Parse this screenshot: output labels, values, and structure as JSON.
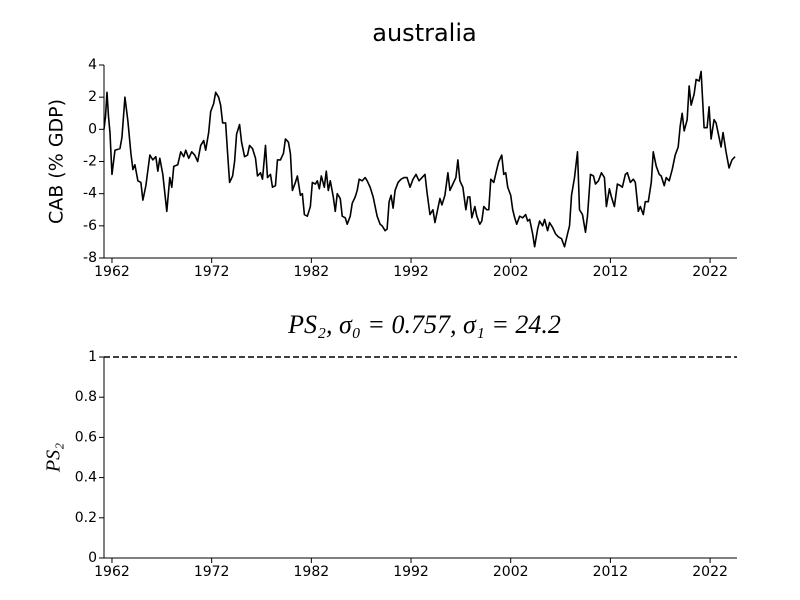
{
  "chart_data": [
    {
      "type": "line",
      "title": "australia",
      "ylabel": "CAB (% GDP)",
      "x": [
        1961.2,
        1961.35,
        1961.5,
        1961.65,
        1961.8,
        1962.0,
        1962.3,
        1962.8,
        1963.0,
        1963.3,
        1963.6,
        1963.9,
        1964.1,
        1964.3,
        1964.6,
        1964.9,
        1965.1,
        1965.4,
        1965.8,
        1966.1,
        1966.4,
        1966.6,
        1966.8,
        1967.1,
        1967.5,
        1967.8,
        1968.0,
        1968.2,
        1968.6,
        1968.9,
        1969.2,
        1969.4,
        1969.7,
        1970.0,
        1970.3,
        1970.6,
        1970.9,
        1971.2,
        1971.4,
        1971.7,
        1971.9,
        1972.2,
        1972.4,
        1972.7,
        1972.9,
        1973.1,
        1973.4,
        1973.6,
        1973.8,
        1974.1,
        1974.3,
        1974.5,
        1974.8,
        1975.0,
        1975.3,
        1975.6,
        1975.8,
        1976.1,
        1976.4,
        1976.6,
        1976.9,
        1977.1,
        1977.4,
        1977.6,
        1977.9,
        1978.1,
        1978.4,
        1978.6,
        1978.9,
        1979.2,
        1979.4,
        1979.7,
        1979.9,
        1980.1,
        1980.4,
        1980.6,
        1980.9,
        1981.1,
        1981.3,
        1981.6,
        1981.9,
        1982.1,
        1982.4,
        1982.6,
        1982.8,
        1983.0,
        1983.3,
        1983.5,
        1983.7,
        1983.9,
        1984.2,
        1984.4,
        1984.6,
        1984.9,
        1985.1,
        1985.4,
        1985.6,
        1985.9,
        1986.1,
        1986.4,
        1986.6,
        1986.8,
        1987.1,
        1987.4,
        1987.6,
        1987.9,
        1988.2,
        1988.4,
        1988.6,
        1988.9,
        1989.1,
        1989.4,
        1989.6,
        1989.8,
        1990.0,
        1990.2,
        1990.4,
        1990.7,
        1991.0,
        1991.3,
        1991.6,
        1991.9,
        1992.2,
        1992.5,
        1992.8,
        1993.1,
        1993.4,
        1993.6,
        1993.9,
        1994.2,
        1994.4,
        1994.7,
        1994.9,
        1995.1,
        1995.4,
        1995.7,
        1995.9,
        1996.2,
        1996.5,
        1996.7,
        1996.9,
        1997.2,
        1997.5,
        1997.7,
        1997.9,
        1998.1,
        1998.4,
        1998.6,
        1998.9,
        1999.1,
        1999.3,
        1999.6,
        1999.8,
        2000.0,
        2000.3,
        2000.6,
        2000.8,
        2001.1,
        2001.3,
        2001.5,
        2001.7,
        2002.0,
        2002.2,
        2002.4,
        2002.6,
        2002.9,
        2003.2,
        2003.5,
        2003.7,
        2003.9,
        2004.2,
        2004.4,
        2004.7,
        2004.9,
        2005.2,
        2005.4,
        2005.7,
        2005.9,
        2006.2,
        2006.5,
        2006.8,
        2007.1,
        2007.4,
        2007.7,
        2007.9,
        2008.1,
        2008.4,
        2008.7,
        2008.9,
        2009.2,
        2009.5,
        2009.7,
        2010.0,
        2010.3,
        2010.5,
        2010.8,
        2011.1,
        2011.4,
        2011.6,
        2011.9,
        2012.1,
        2012.4,
        2012.7,
        2013.0,
        2013.2,
        2013.5,
        2013.7,
        2014.0,
        2014.3,
        2014.5,
        2014.8,
        2015.0,
        2015.3,
        2015.5,
        2015.8,
        2016.1,
        2016.3,
        2016.6,
        2016.9,
        2017.1,
        2017.4,
        2017.6,
        2017.9,
        2018.2,
        2018.5,
        2018.8,
        2019.0,
        2019.2,
        2019.4,
        2019.7,
        2019.9,
        2020.1,
        2020.4,
        2020.6,
        2020.9,
        2021.1,
        2021.4,
        2021.7,
        2021.9,
        2022.1,
        2022.4,
        2022.6,
        2022.9,
        2023.1,
        2023.3,
        2023.6,
        2023.9,
        2024.2,
        2024.5
      ],
      "series": [
        {
          "color": "#000000",
          "linestyle": "solid",
          "values": [
            0.0,
            0.8,
            2.3,
            0.8,
            -0.2,
            -2.8,
            -1.3,
            -1.2,
            -0.5,
            2.0,
            0.5,
            -1.5,
            -2.5,
            -2.2,
            -3.2,
            -3.3,
            -4.4,
            -3.5,
            -1.6,
            -1.9,
            -1.7,
            -2.6,
            -1.8,
            -2.8,
            -5.1,
            -3.0,
            -3.6,
            -2.3,
            -2.2,
            -1.4,
            -1.7,
            -1.3,
            -1.8,
            -1.4,
            -1.6,
            -2.0,
            -1.0,
            -0.7,
            -1.3,
            -0.2,
            1.1,
            1.6,
            2.3,
            2.0,
            1.5,
            0.4,
            0.4,
            -1.5,
            -3.3,
            -2.9,
            -2.0,
            -0.3,
            0.3,
            -0.8,
            -1.7,
            -1.6,
            -1.0,
            -1.2,
            -1.8,
            -2.9,
            -2.7,
            -3.1,
            -1.0,
            -3.0,
            -2.8,
            -3.6,
            -3.5,
            -1.9,
            -1.9,
            -1.5,
            -0.6,
            -0.8,
            -1.5,
            -3.8,
            -3.3,
            -2.9,
            -4.1,
            -4.0,
            -5.3,
            -5.4,
            -4.8,
            -3.3,
            -3.4,
            -3.2,
            -3.7,
            -2.9,
            -3.6,
            -2.6,
            -3.8,
            -3.2,
            -4.2,
            -5.1,
            -4.0,
            -4.3,
            -5.4,
            -5.5,
            -5.9,
            -5.4,
            -4.6,
            -4.2,
            -3.8,
            -3.1,
            -3.2,
            -3.0,
            -3.2,
            -3.6,
            -4.2,
            -4.8,
            -5.4,
            -5.9,
            -6.0,
            -6.3,
            -6.2,
            -4.5,
            -4.1,
            -4.9,
            -3.8,
            -3.3,
            -3.1,
            -3.0,
            -3.0,
            -3.6,
            -3.1,
            -2.8,
            -3.2,
            -3.0,
            -2.8,
            -3.9,
            -5.3,
            -5.0,
            -5.8,
            -4.9,
            -4.3,
            -4.7,
            -4.1,
            -2.7,
            -3.8,
            -3.4,
            -3.0,
            -1.9,
            -3.2,
            -3.6,
            -5.0,
            -4.2,
            -4.2,
            -5.5,
            -4.8,
            -5.4,
            -5.9,
            -5.7,
            -4.8,
            -5.0,
            -5.0,
            -3.1,
            -3.3,
            -2.5,
            -2.0,
            -1.6,
            -2.8,
            -2.7,
            -3.6,
            -4.1,
            -5.0,
            -5.5,
            -5.9,
            -5.4,
            -5.5,
            -5.3,
            -5.7,
            -5.6,
            -6.5,
            -7.3,
            -6.2,
            -5.7,
            -6.0,
            -5.6,
            -6.3,
            -5.8,
            -6.1,
            -6.5,
            -6.7,
            -6.8,
            -7.3,
            -6.5,
            -6.0,
            -4.1,
            -3.0,
            -1.4,
            -5.0,
            -5.3,
            -6.4,
            -5.4,
            -2.8,
            -2.9,
            -3.4,
            -3.2,
            -2.7,
            -3.0,
            -4.8,
            -3.7,
            -4.2,
            -4.8,
            -3.4,
            -3.5,
            -3.6,
            -2.8,
            -2.7,
            -3.3,
            -3.1,
            -3.3,
            -5.1,
            -4.8,
            -5.3,
            -4.5,
            -4.5,
            -3.3,
            -1.4,
            -2.3,
            -2.8,
            -2.9,
            -3.5,
            -3.0,
            -3.2,
            -2.5,
            -1.6,
            -1.1,
            0.2,
            1.0,
            -0.1,
            0.6,
            2.7,
            1.5,
            2.2,
            3.1,
            3.0,
            3.6,
            0.1,
            0.1,
            1.4,
            -0.6,
            0.6,
            0.4,
            -0.5,
            -1.1,
            -0.2,
            -1.4,
            -2.4,
            -1.9,
            -1.7
          ]
        }
      ],
      "xlim": [
        1961.2,
        2024.7
      ],
      "xticks": [
        1962,
        1972,
        1982,
        1992,
        2002,
        2012,
        2022
      ],
      "ylim": [
        -8,
        4
      ],
      "yticks": [
        -8,
        -6,
        -4,
        -2,
        0,
        2,
        4
      ]
    },
    {
      "type": "line",
      "title": "PS₂, σ₀ = 0.757, σ₁ = 24.2",
      "ylabel": "PS₂",
      "x": [
        1961.2,
        2024.7
      ],
      "series": [
        {
          "color": "#000000",
          "linestyle": "dashed",
          "values": [
            1,
            1
          ]
        }
      ],
      "xlim": [
        1961.2,
        2024.7
      ],
      "xticks": [
        1962,
        1972,
        1982,
        1992,
        2002,
        2012,
        2022
      ],
      "ylim": [
        0,
        1
      ],
      "yticks": [
        0,
        0.2,
        0.4,
        0.6,
        0.8,
        1
      ]
    }
  ]
}
